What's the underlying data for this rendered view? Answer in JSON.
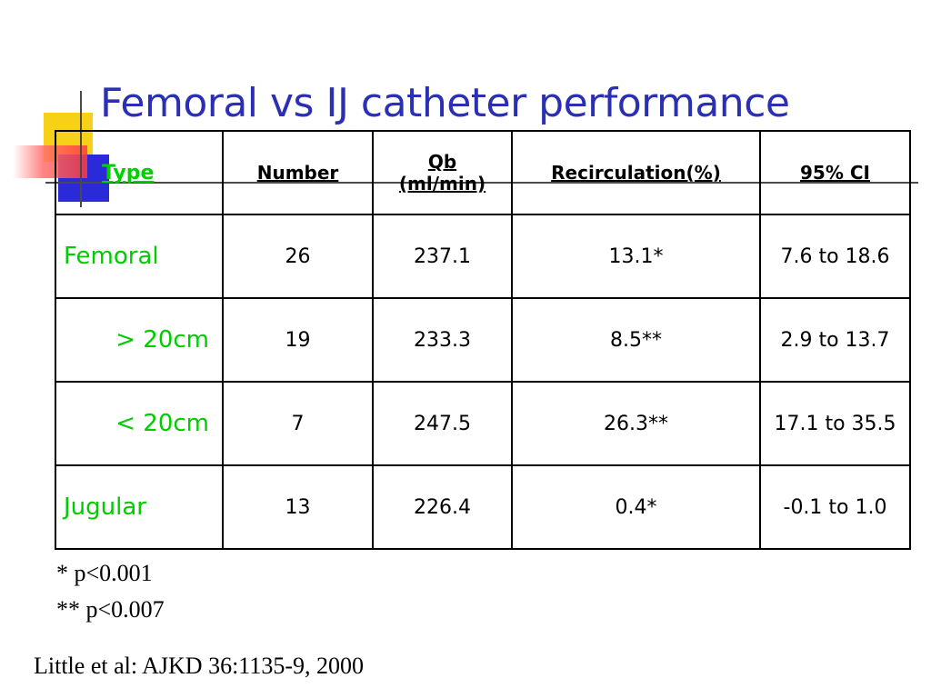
{
  "slide": {
    "title": "Femoral vs IJ catheter performance",
    "accent_color": "#2b2fb3",
    "label_color": "#00cc00"
  },
  "table": {
    "headers": {
      "type": "Type",
      "number": "Number",
      "qb_line1": "Qb",
      "qb_line2": "(ml/min)",
      "recirculation": "Recirculation(%)",
      "ci": "95% CI"
    },
    "rows": [
      {
        "type": "Femoral",
        "number": "26",
        "qb": "237.1",
        "recirculation": "13.1*",
        "ci": "7.6 to 18.6"
      },
      {
        "type": "> 20cm",
        "number": "19",
        "qb": "233.3",
        "recirculation": "8.5**",
        "ci": "2.9 to 13.7"
      },
      {
        "type": "< 20cm",
        "number": "7",
        "qb": "247.5",
        "recirculation": "26.3**",
        "ci": "17.1 to 35.5"
      },
      {
        "type": "Jugular",
        "number": "13",
        "qb": "226.4",
        "recirculation": "0.4*",
        "ci": "-0.1 to 1.0"
      }
    ]
  },
  "footnotes": {
    "note1": "*   p<0.001",
    "note2": "** p<0.007"
  },
  "citation": "Little et al: AJKD 36:1135-9, 2000",
  "decorations": {
    "icons": [
      "yellow-square-icon",
      "blue-square-icon",
      "red-gradient-bar-icon"
    ]
  }
}
